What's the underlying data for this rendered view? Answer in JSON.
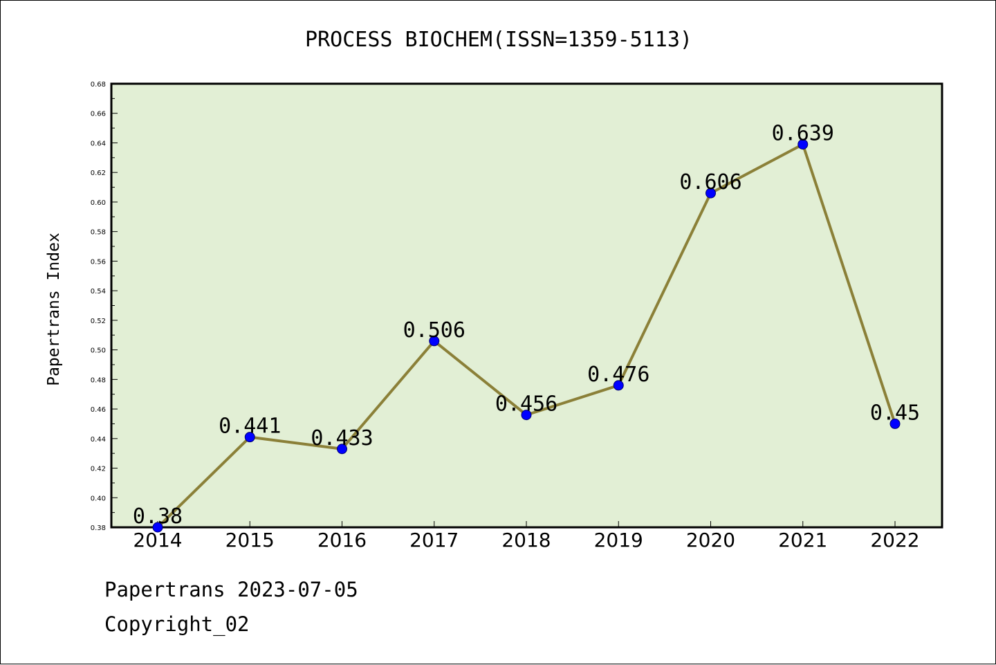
{
  "chart_data": {
    "type": "line",
    "title": "PROCESS BIOCHEM(ISSN=1359-5113)",
    "xlabel": "",
    "ylabel": "Papertrans Index",
    "categories": [
      "2014",
      "2015",
      "2016",
      "2017",
      "2018",
      "2019",
      "2020",
      "2021",
      "2022"
    ],
    "series": [
      {
        "values": [
          0.38,
          0.441,
          0.433,
          0.506,
          0.456,
          0.476,
          0.606,
          0.639,
          0.45
        ],
        "labels": [
          "0.38",
          "0.441",
          "0.433",
          "0.506",
          "0.456",
          "0.476",
          "0.606",
          "0.639",
          "0.45"
        ]
      }
    ],
    "ylim": [
      0.38,
      0.68
    ],
    "yticks": [
      "0.38",
      "0.40",
      "0.42",
      "0.44",
      "0.46",
      "0.48",
      "0.50",
      "0.52",
      "0.54",
      "0.56",
      "0.58",
      "0.60",
      "0.62",
      "0.64",
      "0.66",
      "0.68"
    ],
    "grid": false,
    "colors": {
      "plot_background": "#e2efd5",
      "line": "#8b8038",
      "marker": "#0000ff"
    }
  },
  "footer": {
    "line1": "Papertrans 2023-07-05",
    "line2": "Copyright_02"
  }
}
